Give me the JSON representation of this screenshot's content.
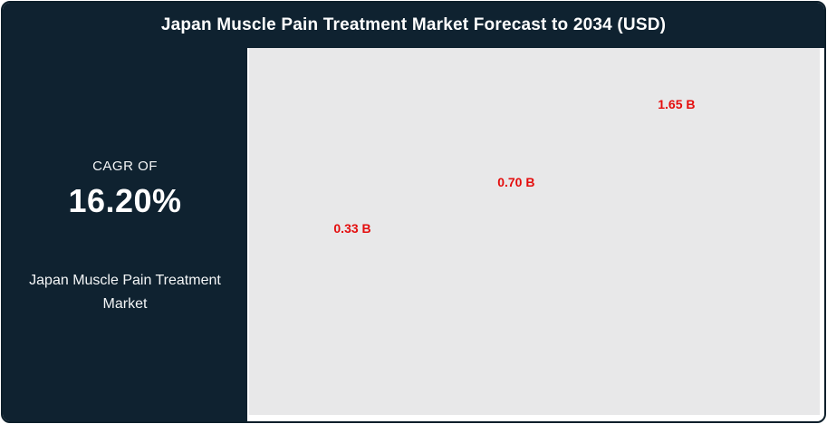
{
  "header": {
    "title": "Japan Muscle Pain Treatment Market Forecast to 2034 (USD)"
  },
  "sidebar": {
    "cagr_label": "CAGR OF",
    "cagr_value": "16.20%",
    "market_name": "Japan Muscle Pain Treatment Market"
  },
  "chart_data": {
    "type": "bar",
    "title": "Japan Muscle Pain Treatment Market Forecast to 2034 (USD)",
    "values": [
      0.33,
      0.7,
      1.65
    ],
    "data_labels": [
      "0.33 B",
      "0.70 B",
      "1.65 B"
    ],
    "unit": "B (USD)",
    "xlabel": "",
    "ylabel": "",
    "categories": [],
    "legend_visible": false,
    "grid": false,
    "axes_visible": false,
    "bars_visible": false,
    "plot_background": "#e8e8e9",
    "data_label_color": "#e40d0d"
  },
  "colors": {
    "navy": "#0f2230",
    "border": "#0d1f2b",
    "panel_gray": "#e8e8e9",
    "red": "#e40d0d",
    "text_white": "#ffffff"
  }
}
